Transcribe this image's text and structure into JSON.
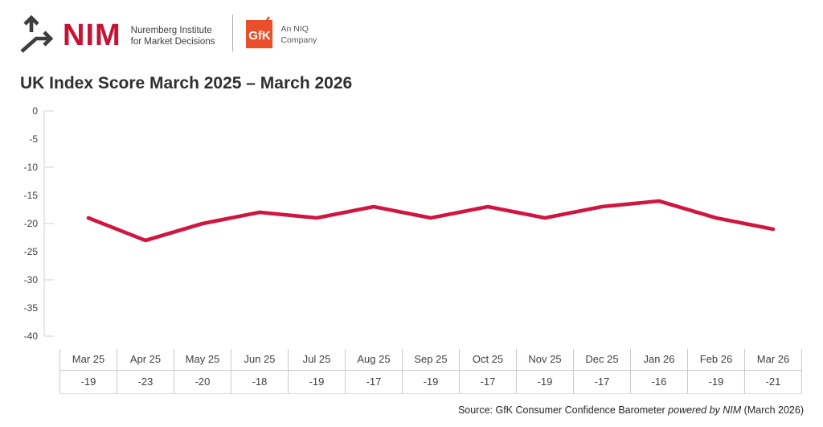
{
  "header": {
    "nim": {
      "wordmark": "NIM",
      "tagline_line1": "Nuremberg Institute",
      "tagline_line2": "for Market Decisions"
    },
    "gfk": {
      "wordmark": "GfK",
      "tag_line1": "An NIQ",
      "tag_line2": "Company"
    }
  },
  "title": "UK Index Score March 2025 – March 2026",
  "chart_data": {
    "type": "line",
    "title": "UK Index Score March 2025 – March 2026",
    "categories": [
      "Mar 25",
      "Apr 25",
      "May 25",
      "Jun 25",
      "Jul 25",
      "Aug 25",
      "Sep 25",
      "Oct 25",
      "Nov 25",
      "Dec 25",
      "Jan 26",
      "Feb 26",
      "Mar 26"
    ],
    "values": [
      -19,
      -23,
      -20,
      -18,
      -19,
      -17,
      -19,
      -17,
      -19,
      -17,
      -16,
      -19,
      -21
    ],
    "xlabel": "",
    "ylabel": "",
    "ylim": [
      -40,
      0
    ],
    "ytick_label_step": 5,
    "ytick_mark_step": 10,
    "grid": false,
    "legend_position": "none",
    "line_color": "#d01540",
    "axis_color": "#d9d9d9",
    "tick_label_color": "#404040",
    "shows_value_row": true
  },
  "footer": {
    "source_prefix": "Source: GfK Consumer Confidence Barometer ",
    "source_italic": "powered by NIM",
    "source_suffix": " (March 2026)"
  },
  "colors": {
    "nim_red": "#c41334",
    "gfk_orange": "#ea4f2c",
    "line_red": "#d01540",
    "text_dark": "#2f2f2f",
    "icon_gray": "#3d3d3c"
  }
}
